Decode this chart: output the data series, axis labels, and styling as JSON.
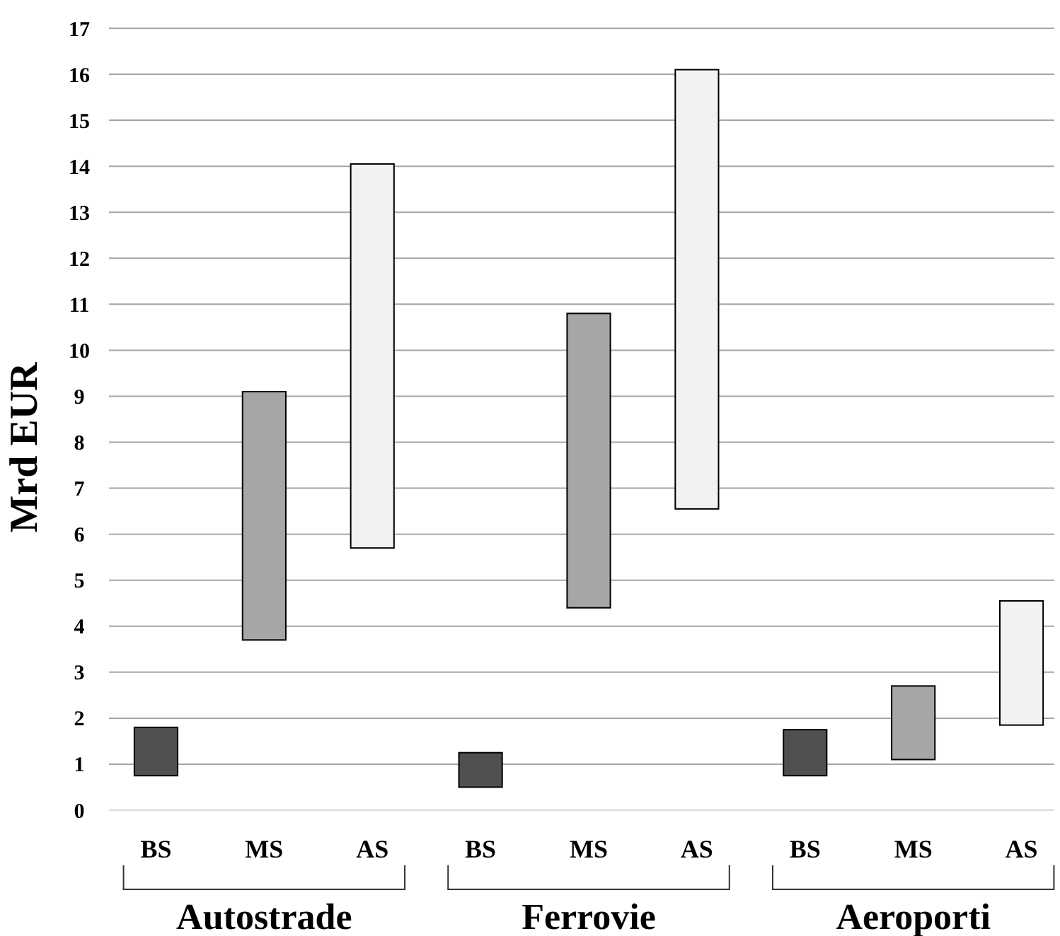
{
  "chart_data": {
    "type": "bar",
    "ylabel": "Mrd EUR",
    "categories": [
      "BS",
      "MS",
      "AS",
      "BS",
      "MS",
      "AS",
      "BS",
      "MS",
      "AS"
    ],
    "values": [
      1.05,
      5.4,
      8.35,
      0.75,
      6.4,
      9.55,
      1.0,
      1.6,
      2.7
    ],
    "base": [
      0.75,
      3.7,
      5.7,
      0.5,
      4.4,
      6.55,
      0.75,
      1.1,
      1.85
    ],
    "colors": [
      "#505050",
      "#a6a6a6",
      "#f2f2f2",
      "#505050",
      "#a6a6a6",
      "#f2f2f2",
      "#505050",
      "#a6a6a6",
      "#f2f2f2"
    ],
    "ylim": [
      0,
      17
    ],
    "yticks": [
      0,
      1,
      2,
      3,
      4,
      5,
      6,
      7,
      8,
      9,
      10,
      11,
      12,
      13,
      14,
      15,
      16,
      17
    ],
    "grid": "y",
    "annotations": [
      "Autostrade",
      "Ferrovie",
      "Aeroporti"
    ]
  }
}
